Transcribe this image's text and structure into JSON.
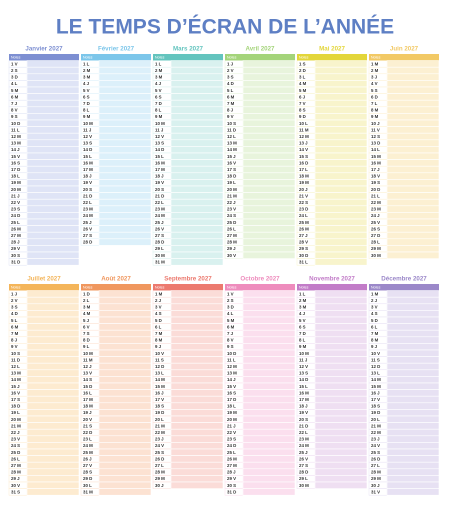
{
  "title": "LE TEMPS D’ÉCRAN DE L’ANNÉE",
  "months": [
    {
      "name": "Janvier 2027",
      "color": "#7d8fd2",
      "tint": "#dfe4f6",
      "notes": "Notes",
      "days": [
        "1 V",
        "2 S",
        "3 D",
        "4 L",
        "5 M",
        "6 M",
        "7 J",
        "8 V",
        "9 S",
        "10 D",
        "11 L",
        "12 M",
        "13 M",
        "14 J",
        "15 V",
        "16 S",
        "17 D",
        "18 L",
        "19 M",
        "20 M",
        "21 J",
        "22 V",
        "23 S",
        "24 D",
        "25 L",
        "26 M",
        "27 M",
        "28 J",
        "29 V",
        "30 S",
        "31 D"
      ]
    },
    {
      "name": "Février 2027",
      "color": "#7cc6ea",
      "tint": "#dcf0fa",
      "notes": "Notes",
      "days": [
        "1 L",
        "2 M",
        "3 M",
        "4 J",
        "5 V",
        "6 S",
        "7 D",
        "8 L",
        "9 M",
        "10 M",
        "11 J",
        "12 V",
        "13 S",
        "14 D",
        "15 L",
        "16 M",
        "17 M",
        "18 J",
        "19 V",
        "20 S",
        "21 D",
        "22 L",
        "23 M",
        "24 M",
        "25 J",
        "26 V",
        "27 S",
        "28 D"
      ]
    },
    {
      "name": "Mars 2027",
      "color": "#63c4be",
      "tint": "#d9f1ef",
      "notes": "Notes",
      "days": [
        "1 L",
        "2 M",
        "3 M",
        "4 J",
        "5 V",
        "6 S",
        "7 D",
        "8 L",
        "9 M",
        "10 M",
        "11 J",
        "12 V",
        "13 S",
        "14 D",
        "15 L",
        "16 M",
        "17 M",
        "18 J",
        "19 V",
        "20 S",
        "21 D",
        "22 L",
        "23 M",
        "24 M",
        "25 J",
        "26 V",
        "27 S",
        "28 D",
        "29 L",
        "30 M",
        "31 M"
      ]
    },
    {
      "name": "Avril 2027",
      "color": "#a4d47a",
      "tint": "#e8f4dc",
      "notes": "Notes",
      "days": [
        "1 J",
        "2 V",
        "3 S",
        "4 D",
        "5 L",
        "6 M",
        "7 M",
        "8 J",
        "9 V",
        "10 S",
        "11 D",
        "12 L",
        "13 M",
        "14 M",
        "15 J",
        "16 V",
        "17 S",
        "18 D",
        "19 L",
        "20 M",
        "21 M",
        "22 J",
        "23 V",
        "24 S",
        "25 D",
        "26 L",
        "27 M",
        "28 M",
        "29 J",
        "30 V"
      ]
    },
    {
      "name": "Mai 2027",
      "color": "#e3d63a",
      "tint": "#f8f4cc",
      "notes": "Notes",
      "days": [
        "1 S",
        "2 D",
        "3 L",
        "4 M",
        "5 M",
        "6 J",
        "7 V",
        "8 S",
        "9 D",
        "10 L",
        "11 M",
        "12 M",
        "13 J",
        "14 V",
        "15 S",
        "16 D",
        "17 L",
        "18 M",
        "19 M",
        "20 J",
        "21 V",
        "22 S",
        "23 D",
        "24 L",
        "25 M",
        "26 M",
        "27 J",
        "28 V",
        "29 S",
        "30 D",
        "31 L"
      ]
    },
    {
      "name": "Juin 2027",
      "color": "#f2c965",
      "tint": "#fcf0d2",
      "notes": "Notes",
      "days": [
        "1 M",
        "2 M",
        "3 J",
        "4 V",
        "5 S",
        "6 D",
        "7 L",
        "8 M",
        "9 M",
        "10 J",
        "11 V",
        "12 S",
        "13 D",
        "14 L",
        "15 M",
        "16 M",
        "17 J",
        "18 V",
        "19 S",
        "20 D",
        "21 L",
        "22 M",
        "23 M",
        "24 J",
        "25 V",
        "26 S",
        "27 D",
        "28 L",
        "29 M",
        "30 M"
      ]
    },
    {
      "name": "Juillet 2027",
      "color": "#f4b55a",
      "tint": "#fdebd0",
      "notes": "Notes",
      "days": [
        "1 J",
        "2 V",
        "3 S",
        "4 D",
        "5 L",
        "6 M",
        "7 M",
        "8 J",
        "9 V",
        "10 S",
        "11 D",
        "12 L",
        "13 M",
        "14 M",
        "15 J",
        "16 V",
        "17 S",
        "18 D",
        "19 L",
        "20 M",
        "21 M",
        "22 J",
        "23 V",
        "24 S",
        "25 D",
        "26 L",
        "27 M",
        "28 M",
        "29 J",
        "30 V",
        "31 S"
      ]
    },
    {
      "name": "Août 2027",
      "color": "#f0975e",
      "tint": "#fce2d2",
      "notes": "Notes",
      "days": [
        "1 D",
        "2 L",
        "3 M",
        "4 M",
        "5 J",
        "6 V",
        "7 S",
        "8 D",
        "9 L",
        "10 M",
        "11 M",
        "12 J",
        "13 V",
        "14 S",
        "15 D",
        "16 L",
        "17 M",
        "18 M",
        "19 J",
        "20 V",
        "21 S",
        "22 D",
        "23 L",
        "24 M",
        "25 M",
        "26 J",
        "27 V",
        "28 S",
        "29 D",
        "30 L",
        "31 M"
      ]
    },
    {
      "name": "Septembre 2027",
      "color": "#ec7a6f",
      "tint": "#fbdcd8",
      "notes": "Notes",
      "days": [
        "1 M",
        "2 J",
        "3 V",
        "4 S",
        "5 D",
        "6 L",
        "7 M",
        "8 M",
        "9 J",
        "10 V",
        "11 S",
        "12 D",
        "13 L",
        "14 M",
        "15 M",
        "16 J",
        "17 V",
        "18 S",
        "19 D",
        "20 L",
        "21 M",
        "22 M",
        "23 J",
        "24 V",
        "25 S",
        "26 D",
        "27 L",
        "28 M",
        "29 M",
        "30 J"
      ]
    },
    {
      "name": "Octobre 2027",
      "color": "#ee8cbd",
      "tint": "#fbdfee",
      "notes": "Notes",
      "days": [
        "1 V",
        "2 S",
        "3 D",
        "4 L",
        "5 M",
        "6 M",
        "7 J",
        "8 V",
        "9 S",
        "10 D",
        "11 L",
        "12 M",
        "13 M",
        "14 J",
        "15 V",
        "16 S",
        "17 D",
        "18 L",
        "19 M",
        "20 M",
        "21 J",
        "22 V",
        "23 S",
        "24 D",
        "25 L",
        "26 M",
        "27 M",
        "28 J",
        "29 V",
        "30 S",
        "31 D"
      ]
    },
    {
      "name": "Novembre 2027",
      "color": "#c27cc8",
      "tint": "#efdff2",
      "notes": "Notes",
      "days": [
        "1 L",
        "2 M",
        "3 M",
        "4 J",
        "5 V",
        "6 S",
        "7 D",
        "8 L",
        "9 M",
        "10 M",
        "11 J",
        "12 V",
        "13 S",
        "14 D",
        "15 L",
        "16 M",
        "17 M",
        "18 J",
        "19 V",
        "20 S",
        "21 D",
        "22 L",
        "23 M",
        "24 M",
        "25 J",
        "26 V",
        "27 S",
        "28 D",
        "29 L",
        "30 M"
      ]
    },
    {
      "name": "Décembre 2027",
      "color": "#9b88c9",
      "tint": "#e7e1f3",
      "notes": "Notes",
      "days": [
        "1 M",
        "2 J",
        "3 V",
        "4 S",
        "5 D",
        "6 L",
        "7 M",
        "8 M",
        "9 J",
        "10 V",
        "11 S",
        "12 D",
        "13 L",
        "14 M",
        "15 M",
        "16 J",
        "17 V",
        "18 S",
        "19 D",
        "20 L",
        "21 M",
        "22 M",
        "23 J",
        "24 V",
        "25 S",
        "26 D",
        "27 L",
        "28 M",
        "29 M",
        "30 J",
        "31 V"
      ]
    }
  ]
}
